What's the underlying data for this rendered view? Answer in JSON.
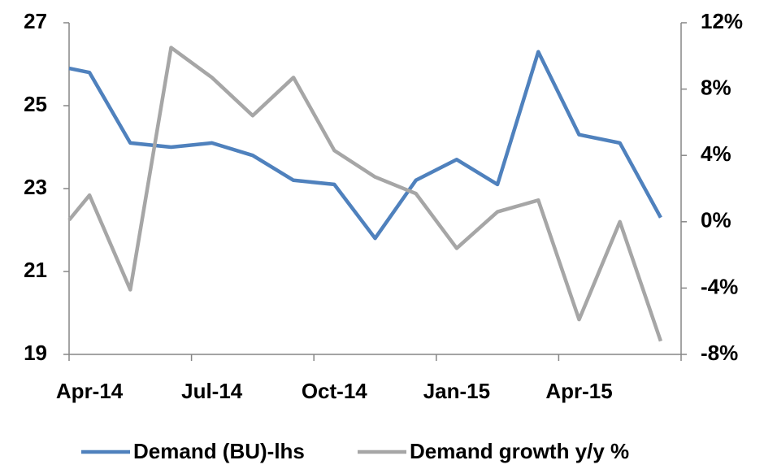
{
  "chart_data": {
    "type": "line",
    "categories": [
      null,
      "Apr-14",
      null,
      null,
      "Jul-14",
      null,
      null,
      "Oct-14",
      null,
      null,
      "Jan-15",
      null,
      null,
      "Apr-15",
      null,
      null
    ],
    "series": [
      {
        "name": "Demand (BU)-lhs",
        "color": "#4f81bd",
        "axis": "y",
        "values": [
          25.9,
          25.8,
          24.1,
          24.0,
          24.1,
          23.8,
          23.2,
          23.1,
          21.8,
          23.2,
          23.7,
          23.1,
          26.3,
          24.3,
          24.1,
          22.3
        ]
      },
      {
        "name": "Demand growth y/y %",
        "color": "#a6a6a6",
        "axis": "y2",
        "values": [
          0.1,
          1.6,
          -4.1,
          10.5,
          8.7,
          6.4,
          8.7,
          4.3,
          2.7,
          1.7,
          -1.6,
          0.6,
          1.3,
          -5.9,
          0.0,
          -7.2
        ]
      }
    ],
    "ylim": [
      19,
      27
    ],
    "yticks": [
      19,
      21,
      23,
      25,
      27
    ],
    "y2lim": [
      -8,
      12
    ],
    "y2ticks": [
      {
        "value": -8,
        "label": "-8%"
      },
      {
        "value": -4,
        "label": "-4%"
      },
      {
        "value": 0,
        "label": "0%"
      },
      {
        "value": 4,
        "label": "4%"
      },
      {
        "value": 8,
        "label": "8%"
      },
      {
        "value": 12,
        "label": "12%"
      }
    ],
    "grid": false,
    "legend": "bottom"
  }
}
